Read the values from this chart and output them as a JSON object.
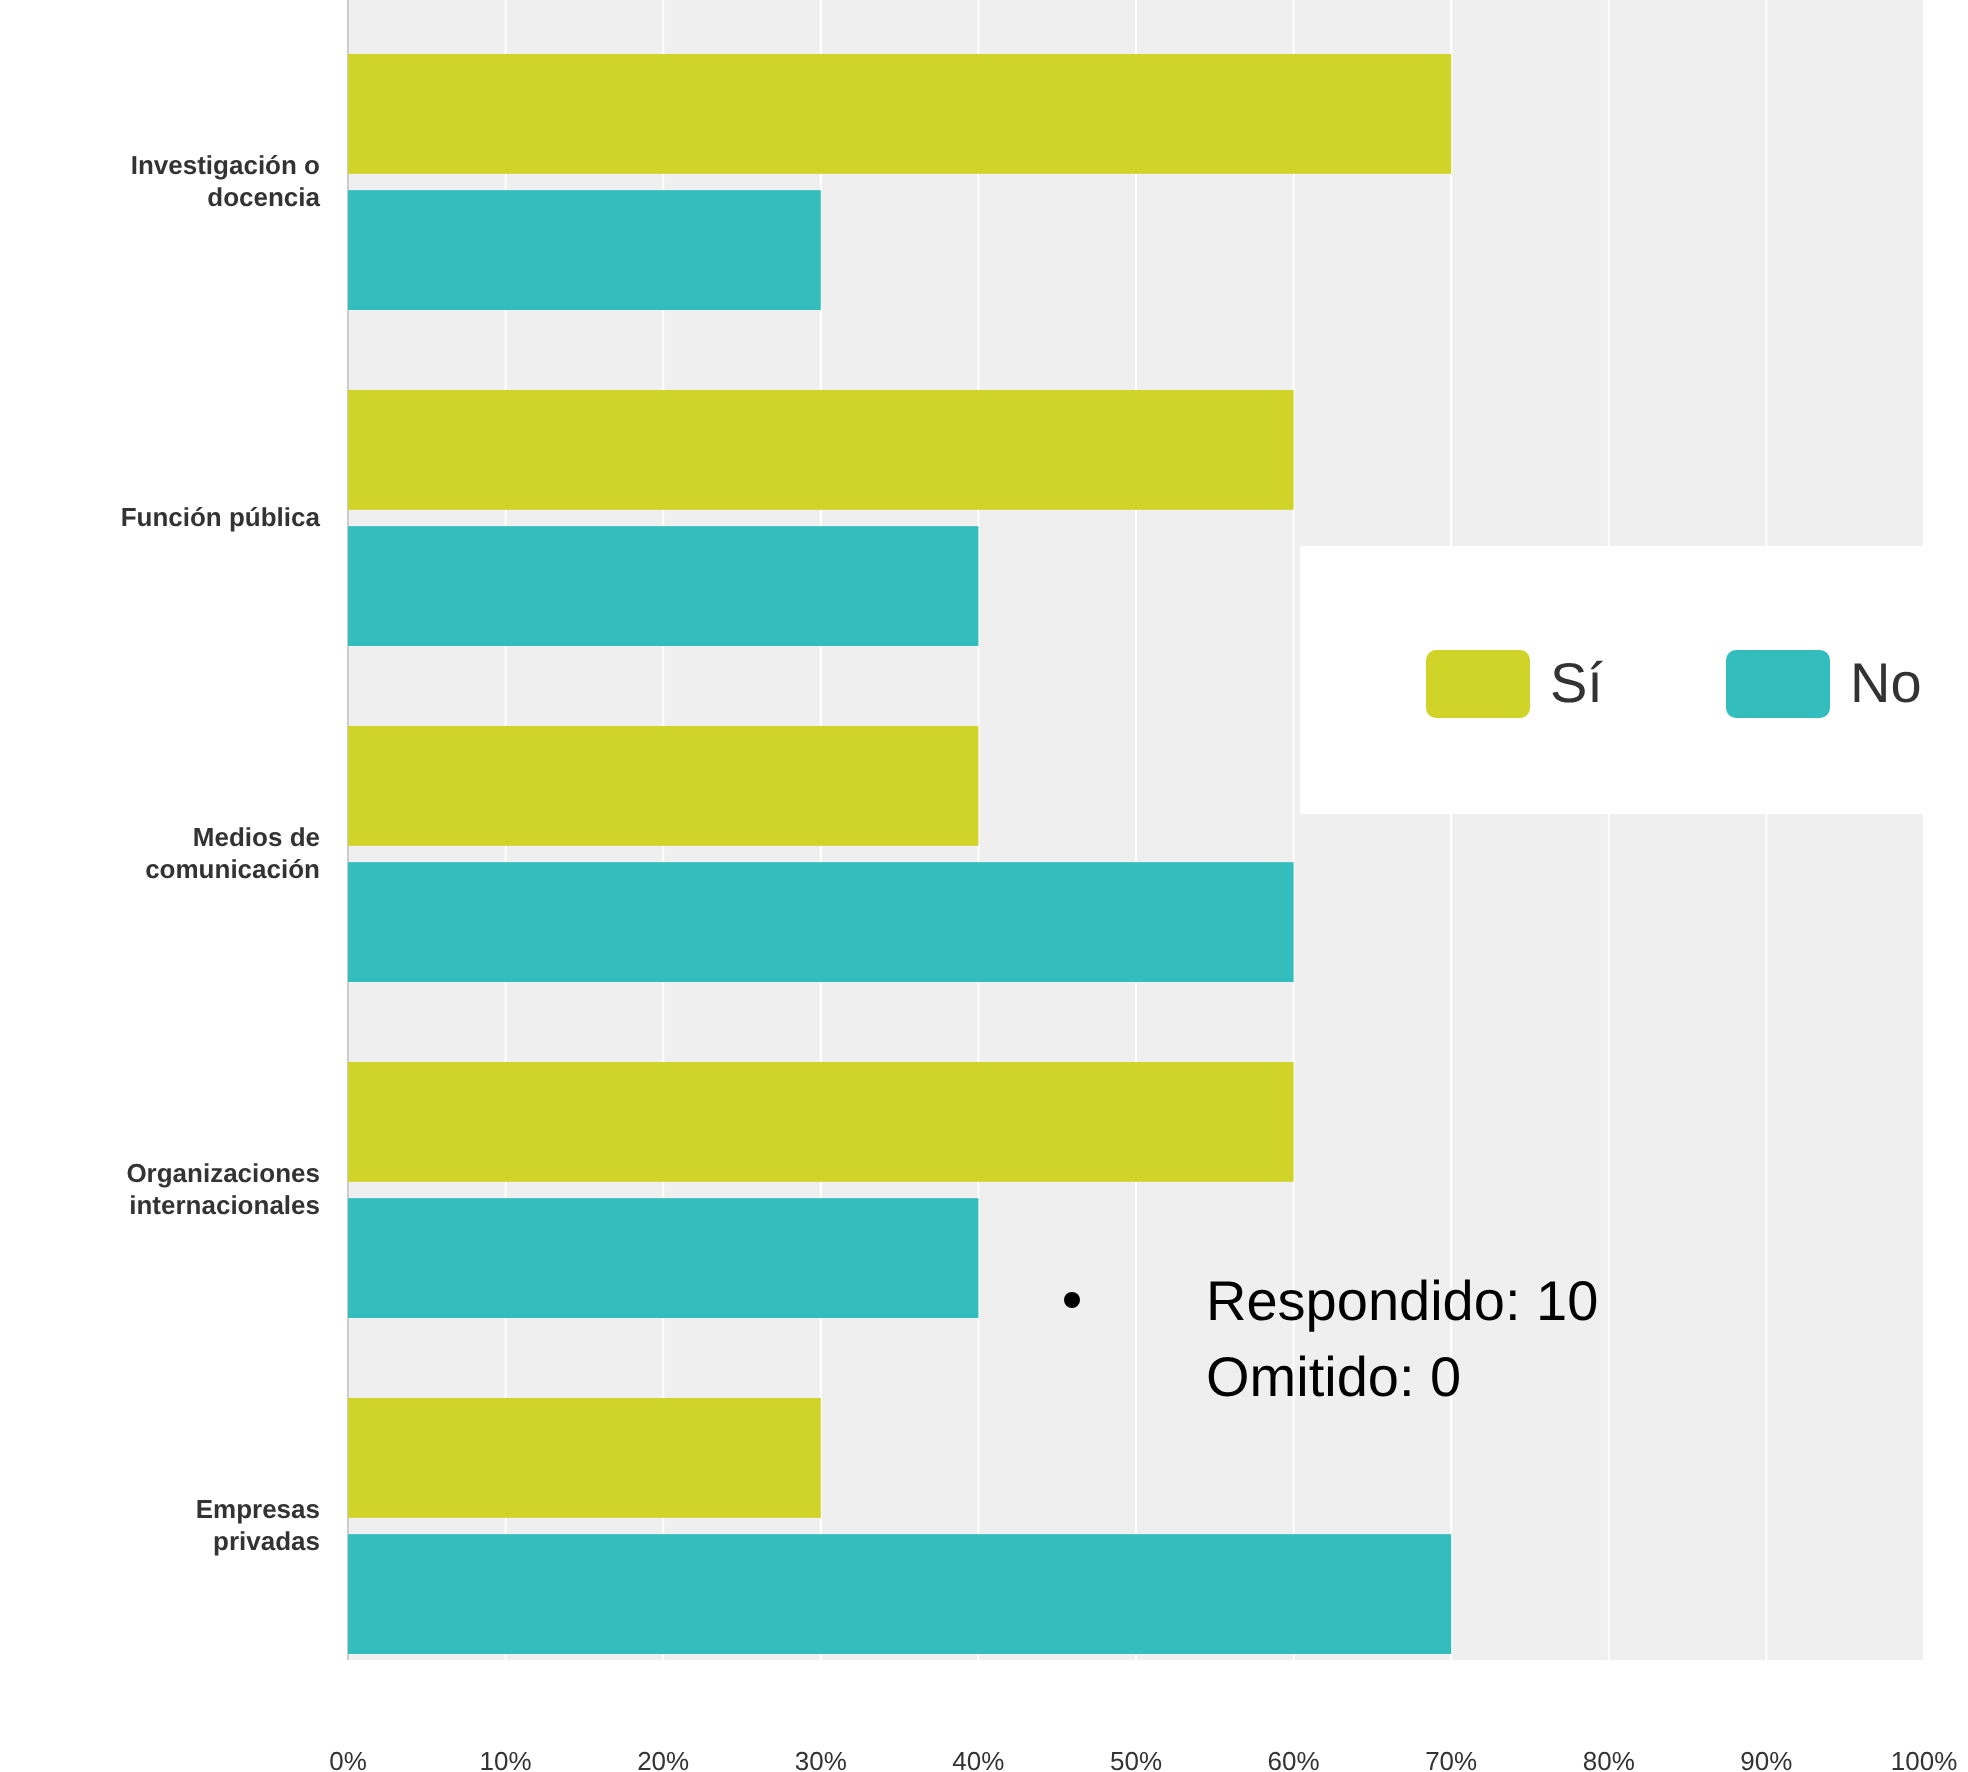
{
  "chart_data": {
    "type": "bar",
    "orientation": "horizontal",
    "categories": [
      "Investigación o docencia",
      "Función pública",
      "Medios de comunicación",
      "Organizaciones internacionales",
      "Empresas privadas"
    ],
    "series": [
      {
        "name": "Sí",
        "color": "#d0d428",
        "values": [
          70,
          60,
          40,
          60,
          30
        ]
      },
      {
        "name": "No",
        "color": "#33bdbd",
        "values": [
          30,
          40,
          60,
          40,
          70
        ]
      }
    ],
    "xlim": [
      0,
      100
    ],
    "xticks": [
      {
        "value": 0,
        "label": "0%"
      },
      {
        "value": 10,
        "label": "10%"
      },
      {
        "value": 20,
        "label": "20%"
      },
      {
        "value": 30,
        "label": "30%"
      },
      {
        "value": 40,
        "label": "40%"
      },
      {
        "value": 50,
        "label": "50%"
      },
      {
        "value": 60,
        "label": "60%"
      },
      {
        "value": 70,
        "label": "70%"
      },
      {
        "value": 80,
        "label": "80%"
      },
      {
        "value": 90,
        "label": "90%"
      },
      {
        "value": 100,
        "label": "100%"
      }
    ],
    "grid": "x",
    "legend": "right",
    "annotations": [
      "Respondido: 10",
      "Omitido: 0"
    ]
  }
}
